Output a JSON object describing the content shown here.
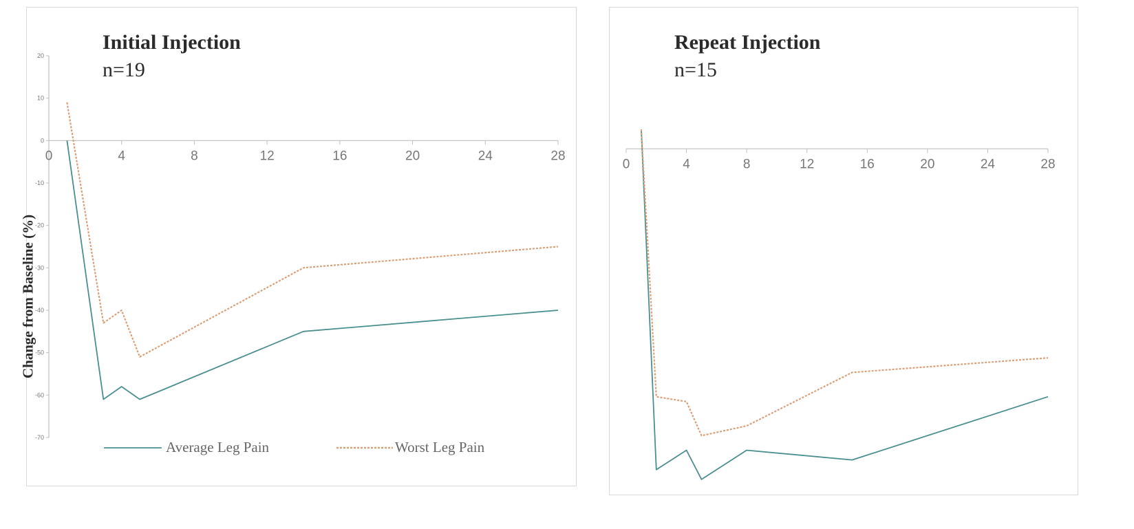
{
  "chart_data": [
    {
      "type": "line",
      "title": "Initial Injection",
      "subtitle": "n=19",
      "ylabel": "Change from Baseline (%)",
      "xlabel": "",
      "xlim": [
        0,
        28
      ],
      "ylim": [
        -70,
        20
      ],
      "x_ticks": [
        "0",
        "4",
        "8",
        "12",
        "16",
        "20",
        "24",
        "28"
      ],
      "y_ticks": [
        "20",
        "10",
        "0",
        "-10",
        "-20",
        "-30",
        "-40",
        "-50",
        "-60",
        "-70"
      ],
      "series": [
        {
          "name": "Average Leg Pain",
          "color": "#4a8f8e",
          "dash": "solid",
          "x": [
            1,
            3,
            4,
            5,
            14,
            28
          ],
          "y": [
            0,
            -61,
            -58,
            -61,
            -45,
            -40
          ]
        },
        {
          "name": "Worst Leg Pain",
          "color": "#d9a07a",
          "dash": "dotted",
          "x": [
            1,
            3,
            4,
            5,
            14,
            28
          ],
          "y": [
            9,
            -43,
            -40,
            -51,
            -30,
            -25
          ]
        }
      ],
      "legend": {
        "position": "bottom"
      },
      "grid": false
    },
    {
      "type": "line",
      "title": "Repeat Injection",
      "subtitle": "n=15",
      "ylabel": "",
      "xlabel": "",
      "xlim": [
        0,
        28
      ],
      "ylim": [
        -70,
        5
      ],
      "x_ticks": [
        "0",
        "4",
        "8",
        "12",
        "16",
        "20",
        "24",
        "28"
      ],
      "y_ticks": [],
      "series": [
        {
          "name": "Average Leg Pain",
          "color": "#4a8f8e",
          "dash": "solid",
          "x": [
            1,
            2,
            4,
            5,
            8,
            15,
            28
          ],
          "y": [
            4,
            -66,
            -62,
            -68,
            -62,
            -64,
            -51
          ]
        },
        {
          "name": "Worst Leg Pain",
          "color": "#d9a07a",
          "dash": "dotted",
          "x": [
            1,
            2,
            4,
            5,
            8,
            15,
            28
          ],
          "y": [
            4,
            -51,
            -52,
            -59,
            -57,
            -46,
            -43
          ]
        }
      ],
      "legend": {
        "position": "none"
      },
      "grid": false
    }
  ]
}
